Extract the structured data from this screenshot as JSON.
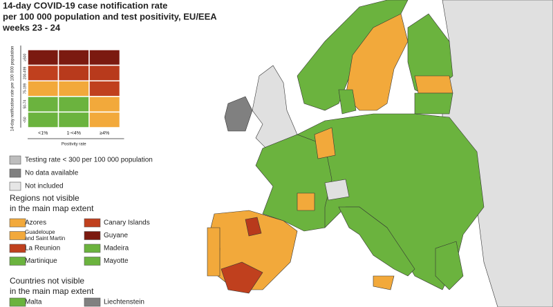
{
  "title": [
    "14-day COVID-19 case notification rate",
    "per 100 000 population and test positivity, EU/EEA",
    "weeks 23 - 24"
  ],
  "matrix": {
    "y_label": "14-day notification rate per 100 000 population",
    "x_label": "Positivity rate",
    "rows": [
      "≥500",
      "200-499",
      "75-199",
      "50-74",
      "<50"
    ],
    "columns": [
      "<1%",
      "1-<4%",
      "≥4%"
    ],
    "colors": [
      [
        "#7b1a10",
        "#7b1a10",
        "#7b1a10"
      ],
      [
        "#c0401e",
        "#b83a1c",
        "#b83a1c"
      ],
      [
        "#f2a93b",
        "#f2a93b",
        "#c0401e"
      ],
      [
        "#6bb33e",
        "#6bb33e",
        "#f2a93b"
      ],
      [
        "#6bb33e",
        "#6bb33e",
        "#f2a93b"
      ]
    ]
  },
  "legend": [
    {
      "label": "Testing rate < 300 per 100 000 population",
      "color": "#bdbdbd"
    },
    {
      "label": "No data available",
      "color": "#808080"
    },
    {
      "label": "Not included",
      "color": "#e6e6e6"
    }
  ],
  "regions": {
    "heading": [
      "Regions not visible",
      "in the main map extent"
    ],
    "items": [
      {
        "label": [
          "Azores"
        ],
        "color": "#f2a93b"
      },
      {
        "label": [
          "Canary Islands"
        ],
        "color": "#c0401e"
      },
      {
        "label": [
          "Guadeloupe",
          "and Saint Martin"
        ],
        "color": "#f2a93b"
      },
      {
        "label": [
          "Guyane"
        ],
        "color": "#7b1a10"
      },
      {
        "label": [
          "La Reunion"
        ],
        "color": "#c0401e"
      },
      {
        "label": [
          "Madeira"
        ],
        "color": "#6bb33e"
      },
      {
        "label": [
          "Martinique"
        ],
        "color": "#6bb33e"
      },
      {
        "label": [
          "Mayotte"
        ],
        "color": "#6bb33e"
      }
    ]
  },
  "countries": {
    "heading": [
      "Countries not visible",
      "in the main map extent"
    ],
    "items": [
      {
        "label": [
          "Malta"
        ],
        "color": "#6bb33e"
      },
      {
        "label": [
          "Liechtenstein"
        ],
        "color": "#808080"
      }
    ]
  }
}
